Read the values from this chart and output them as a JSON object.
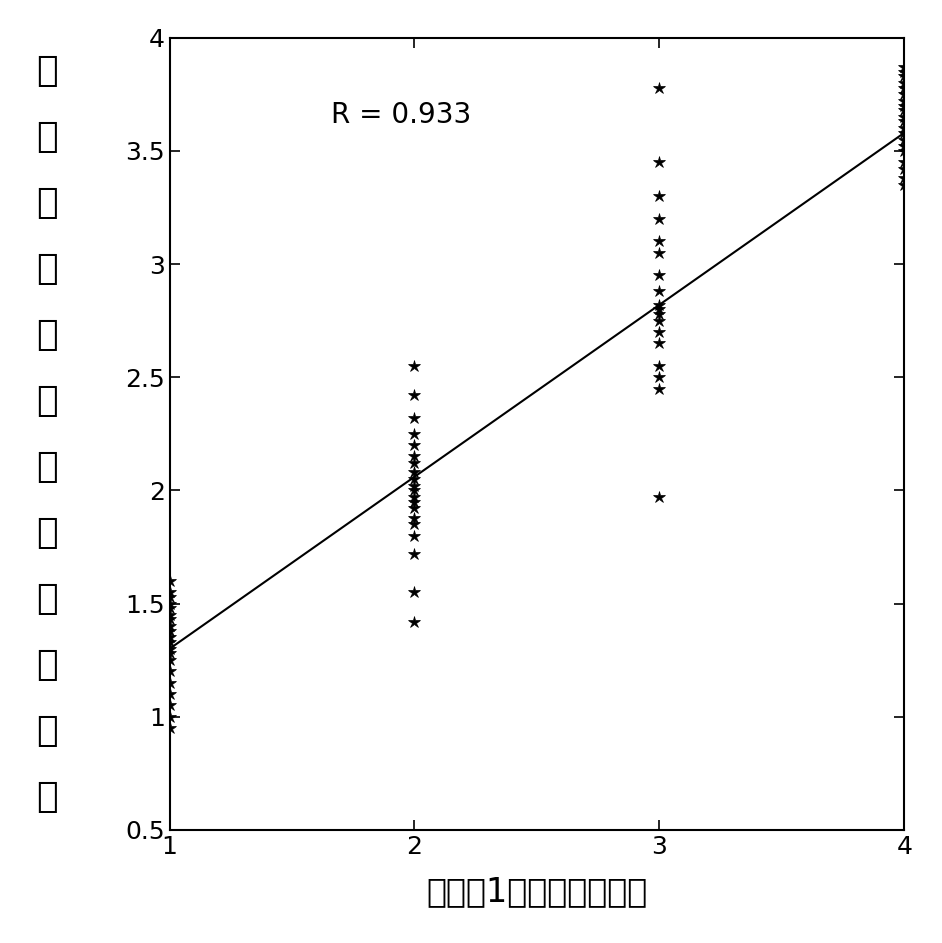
{
  "R_value": "R = 0.933",
  "xlabel": "依照表1得到的危险分层",
  "ylabel_chars": [
    "本",
    "发",
    "明",
    "评",
    "估",
    "得",
    "到",
    "的",
    "危",
    "险",
    "分",
    "层"
  ],
  "xlim": [
    1.0,
    4.0
  ],
  "ylim": [
    0.5,
    4.0
  ],
  "xticks": [
    1,
    2,
    3,
    4
  ],
  "yticks": [
    0.5,
    1.0,
    1.5,
    2.0,
    2.5,
    3.0,
    3.5,
    4.0
  ],
  "ytick_labels": [
    "0.5",
    "1",
    "1.5",
    "2",
    "2.5",
    "3",
    "3.5",
    "4"
  ],
  "line_x": [
    1.0,
    4.0
  ],
  "line_y": [
    1.3,
    3.58
  ],
  "scatter_x1": [
    1,
    1,
    1,
    1,
    1,
    1,
    1,
    1,
    1,
    1,
    1,
    1,
    1,
    1,
    1,
    1,
    1,
    1,
    1,
    1
  ],
  "scatter_y1": [
    0.95,
    1.0,
    1.05,
    1.1,
    1.15,
    1.2,
    1.25,
    1.28,
    1.3,
    1.33,
    1.35,
    1.38,
    1.4,
    1.43,
    1.45,
    1.48,
    1.5,
    1.53,
    1.55,
    1.6
  ],
  "scatter_x2": [
    2,
    2,
    2,
    2,
    2,
    2,
    2,
    2,
    2,
    2,
    2,
    2,
    2,
    2,
    2,
    2,
    2,
    2,
    2,
    2
  ],
  "scatter_y2": [
    1.42,
    1.55,
    1.72,
    1.8,
    1.85,
    1.88,
    1.92,
    1.95,
    1.97,
    2.0,
    2.02,
    2.05,
    2.08,
    2.12,
    2.15,
    2.2,
    2.25,
    2.32,
    2.42,
    2.55
  ],
  "scatter_x3": [
    3,
    3,
    3,
    3,
    3,
    3,
    3,
    3,
    3,
    3,
    3,
    3,
    3,
    3,
    3,
    3,
    3,
    3
  ],
  "scatter_y3": [
    1.97,
    2.45,
    2.5,
    2.55,
    2.65,
    2.7,
    2.75,
    2.78,
    2.8,
    2.82,
    2.88,
    2.95,
    3.05,
    3.1,
    3.2,
    3.3,
    3.45,
    3.78
  ],
  "scatter_x4": [
    4,
    4,
    4,
    4,
    4,
    4,
    4,
    4,
    4,
    4,
    4,
    4,
    4,
    4,
    4,
    4,
    4,
    4,
    4,
    4
  ],
  "scatter_y4": [
    3.35,
    3.38,
    3.42,
    3.45,
    3.5,
    3.52,
    3.55,
    3.58,
    3.6,
    3.63,
    3.65,
    3.68,
    3.7,
    3.72,
    3.75,
    3.78,
    3.8,
    3.83,
    3.85,
    3.87
  ],
  "marker_color": "#000000",
  "line_color": "#000000",
  "background_color": "#ffffff",
  "marker_size": 9,
  "annotation_fontsize": 20,
  "xlabel_fontsize": 24,
  "ylabel_char_fontsize": 26,
  "tick_fontsize": 18
}
